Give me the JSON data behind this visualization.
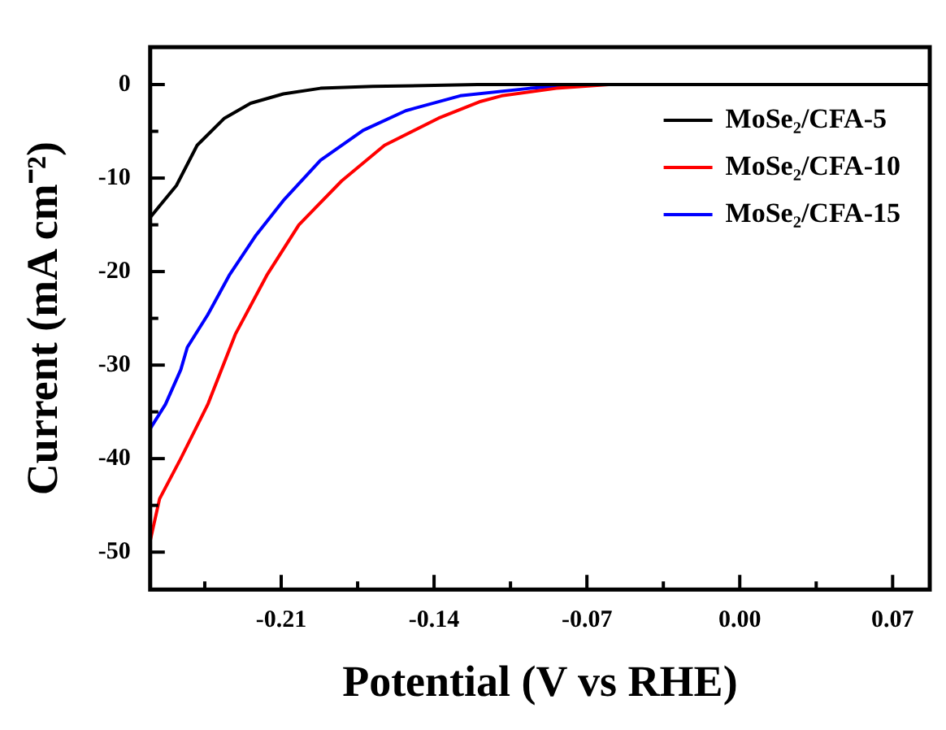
{
  "chart_data": {
    "type": "line",
    "xlabel": "Potential (V vs RHE)",
    "ylabel": "Current (mA cm⁻²)",
    "xlim": [
      -0.27,
      0.087
    ],
    "ylim": [
      -54,
      4
    ],
    "xticks": [
      {
        "value": -0.245,
        "label": null
      },
      -0.21,
      {
        "value": -0.175,
        "label": null
      },
      -0.14,
      {
        "value": -0.105,
        "label": null
      },
      -0.07,
      {
        "value": -0.035,
        "label": null
      },
      {
        "value": 0,
        "label": "0.00"
      },
      {
        "value": 0.035,
        "label": null
      },
      0.07
    ],
    "yticks": [
      -50,
      {
        "value": -45,
        "label": null
      },
      -40,
      {
        "value": -35,
        "label": null
      },
      -30,
      {
        "value": -25,
        "label": null
      },
      -20,
      {
        "value": -15,
        "label": null
      },
      -10,
      {
        "value": -5,
        "label": null
      },
      0
    ],
    "legend": "top right",
    "grid": false,
    "line_style": "solid",
    "marker": "none",
    "series": [
      {
        "name": "MoSe₂/CFA-5",
        "color": "#000000",
        "x": [
          -0.27,
          -0.258,
          -0.2485,
          -0.236,
          -0.224,
          -0.209,
          -0.192,
          -0.168,
          -0.12,
          0.087
        ],
        "values": [
          -14.2,
          -10.8,
          -6.5,
          -3.6,
          -2.0,
          -1.0,
          -0.4,
          -0.2,
          0,
          0
        ]
      },
      {
        "name": "MoSe₂/CFA-10",
        "color": "#ff0000",
        "x": [
          -0.27,
          -0.2657,
          -0.256,
          -0.2436,
          -0.231,
          -0.2166,
          -0.2019,
          -0.1823,
          -0.1627,
          -0.138,
          -0.1186,
          -0.109,
          -0.084,
          -0.06,
          0.087
        ],
        "values": [
          -48.8,
          -44.3,
          -40.0,
          -34.2,
          -26.7,
          -20.4,
          -15.0,
          -10.3,
          -6.5,
          -3.6,
          -1.8,
          -1.2,
          -0.4,
          0,
          0
        ]
      },
      {
        "name": "MoSe₂/CFA-15",
        "color": "#0000ff",
        "x": [
          -0.27,
          -0.263,
          -0.256,
          -0.253,
          -0.2436,
          -0.2338,
          -0.2215,
          -0.209,
          -0.192,
          -0.1725,
          -0.153,
          -0.128,
          -0.096,
          -0.07,
          0.087
        ],
        "values": [
          -36.8,
          -34.2,
          -30.5,
          -28.1,
          -24.6,
          -20.4,
          -16.1,
          -12.4,
          -8.1,
          -4.9,
          -2.8,
          -1.2,
          -0.4,
          0,
          0
        ]
      }
    ]
  }
}
